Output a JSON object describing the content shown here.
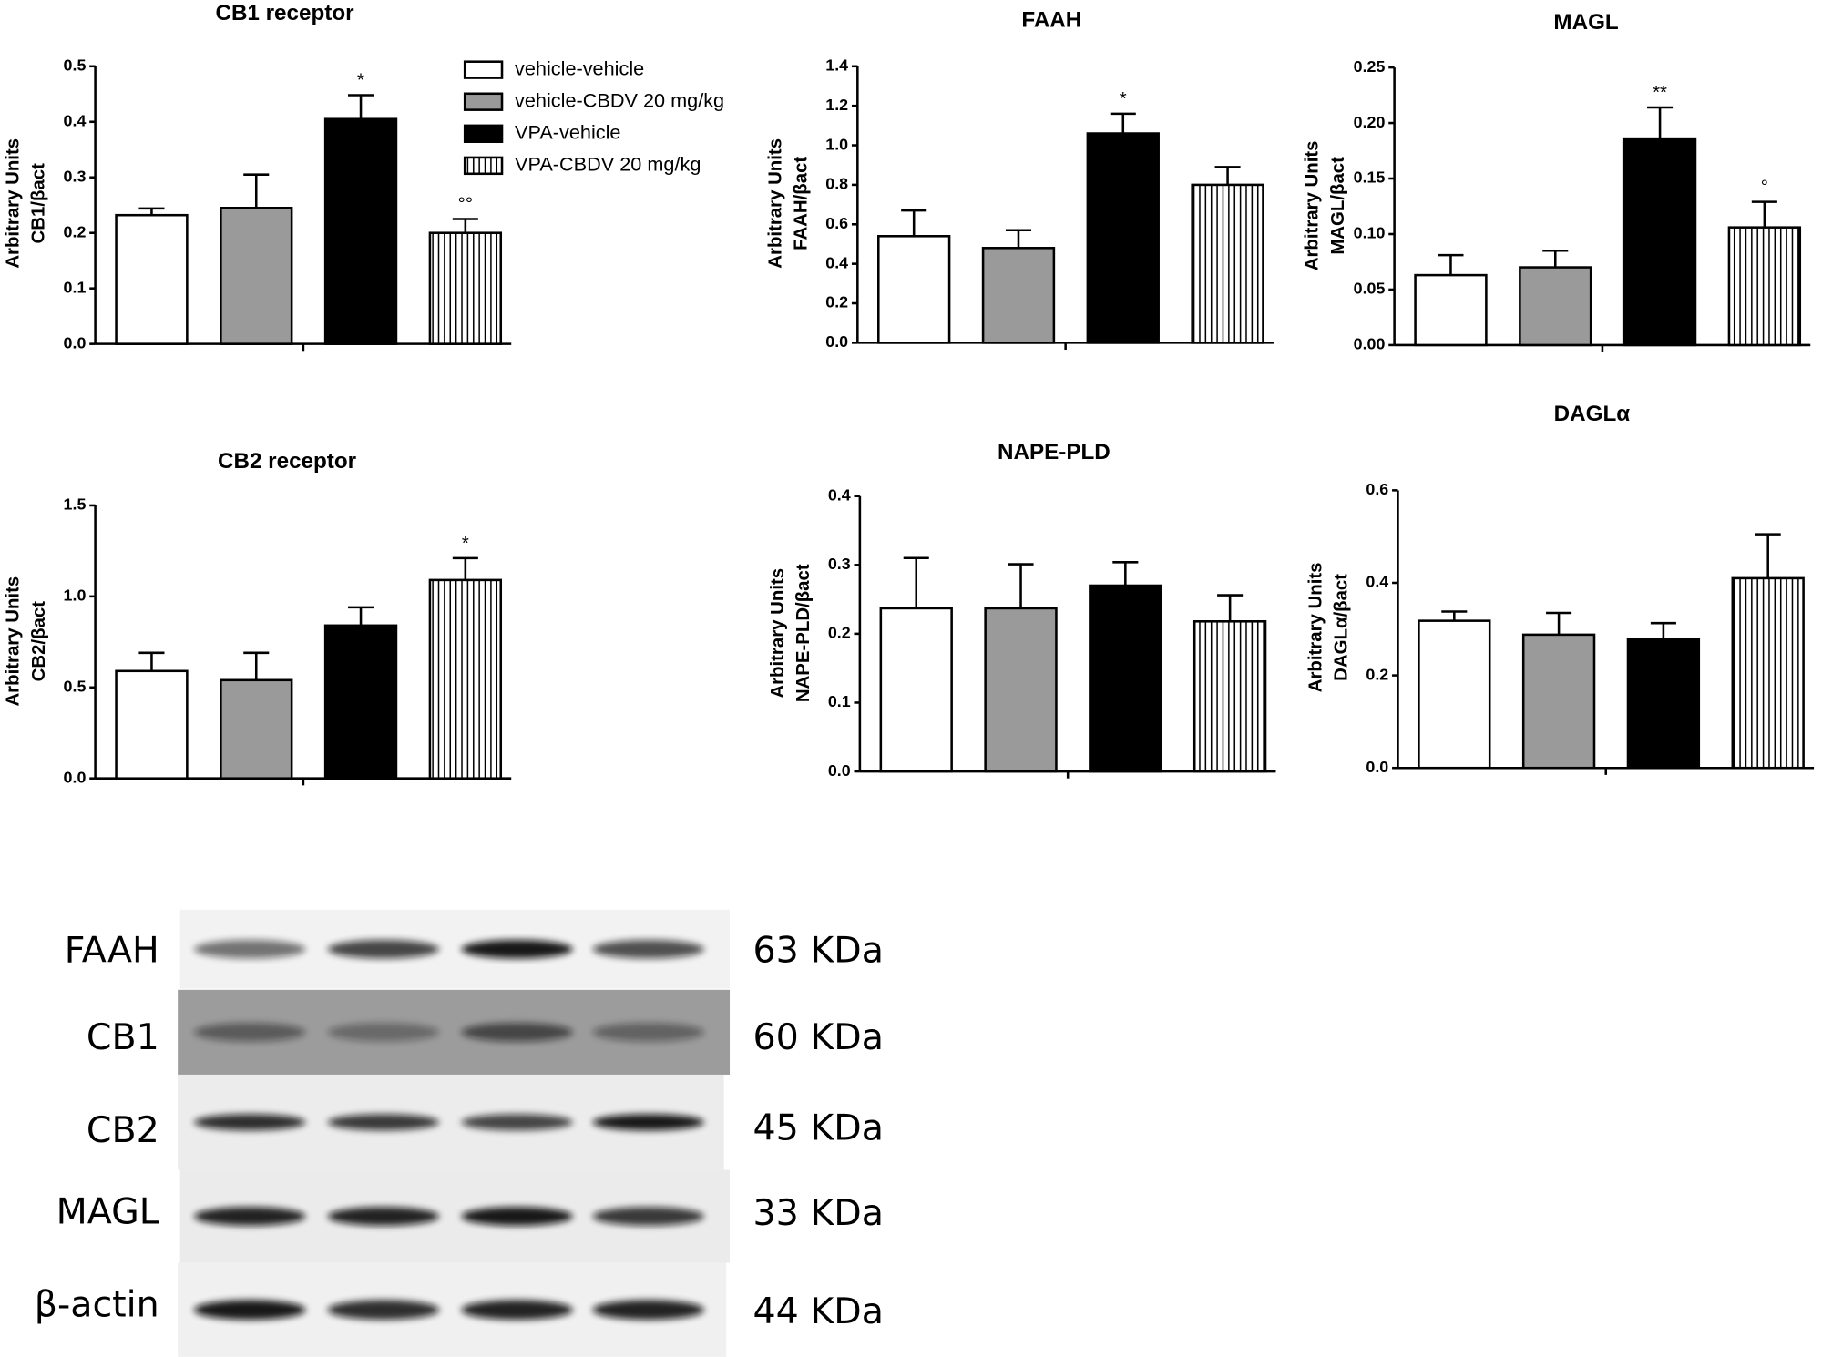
{
  "chart_data": [
    {
      "type": "bar",
      "title": "CB1 receptor",
      "ylabel": [
        "Arbitrary Units",
        "CB1/βact"
      ],
      "values": [
        0.232,
        0.245,
        0.405,
        0.2
      ],
      "errors": [
        0.012,
        0.06,
        0.043,
        0.025
      ],
      "significance": [
        null,
        null,
        "*",
        "°°"
      ],
      "ylim": [
        0,
        0.5
      ],
      "yticks": [
        {
          "value": 0,
          "label": "0.0"
        },
        0.1,
        0.2,
        0.3,
        0.4,
        0.5
      ]
    },
    {
      "type": "bar",
      "title": "FAAH",
      "ylabel": [
        "Arbitrary Units",
        "FAAH/βact"
      ],
      "values": [
        0.54,
        0.48,
        1.06,
        0.8
      ],
      "errors": [
        0.13,
        0.09,
        0.1,
        0.09
      ],
      "significance": [
        null,
        null,
        "*",
        null
      ],
      "ylim": [
        0,
        1.4
      ],
      "yticks": [
        {
          "value": 0,
          "label": "0.0"
        },
        0.2,
        0.4,
        0.6,
        0.8,
        {
          "value": 1,
          "label": "1.0"
        },
        1.2,
        1.4
      ]
    },
    {
      "type": "bar",
      "title": "MAGL",
      "ylabel": [
        "Arbitrary Units",
        "MAGL/βact"
      ],
      "values": [
        0.063,
        0.07,
        0.186,
        0.106
      ],
      "errors": [
        0.018,
        0.015,
        0.028,
        0.023
      ],
      "significance": [
        null,
        null,
        "**",
        "°"
      ],
      "ylim": [
        0,
        0.25
      ],
      "yticks": [
        {
          "value": 0,
          "label": "0.00"
        },
        0.05,
        {
          "value": 0.1,
          "label": "0.10"
        },
        0.15,
        {
          "value": 0.2,
          "label": "0.20"
        },
        0.25
      ]
    },
    {
      "type": "bar",
      "title": "CB2 receptor",
      "ylabel": [
        "Arbitrary Units",
        "CB2/βact"
      ],
      "values": [
        0.59,
        0.54,
        0.84,
        1.09
      ],
      "errors": [
        0.1,
        0.15,
        0.1,
        0.12
      ],
      "significance": [
        null,
        null,
        null,
        "*"
      ],
      "ylim": [
        0,
        1.5
      ],
      "yticks": [
        {
          "value": 0,
          "label": "0.0"
        },
        0.5,
        {
          "value": 1,
          "label": "1.0"
        },
        1.5
      ]
    },
    {
      "type": "bar",
      "title": "NAPE-PLD",
      "ylabel": [
        "Arbitrary Units",
        "NAPE-PLD/βact"
      ],
      "values": [
        0.237,
        0.237,
        0.27,
        0.218
      ],
      "errors": [
        0.073,
        0.064,
        0.034,
        0.038
      ],
      "significance": [
        null,
        null,
        null,
        null
      ],
      "ylim": [
        0,
        0.4
      ],
      "yticks": [
        {
          "value": 0,
          "label": "0.0"
        },
        0.1,
        0.2,
        0.3,
        0.4
      ]
    },
    {
      "type": "bar",
      "title": "DAGLα",
      "ylabel": [
        "Arbitrary Units",
        "DAGLα/βact"
      ],
      "values": [
        0.318,
        0.288,
        0.278,
        0.41
      ],
      "errors": [
        0.02,
        0.047,
        0.035,
        0.095
      ],
      "significance": [
        null,
        null,
        null,
        null
      ],
      "ylim": [
        0,
        0.6
      ],
      "yticks": [
        {
          "value": 0,
          "label": "0.0"
        },
        0.2,
        0.4,
        0.6
      ]
    }
  ],
  "legend": {
    "entries": [
      {
        "name": "vehicle-vehicle",
        "fill": "#ffffff"
      },
      {
        "name": "vehicle-CBDV 20 mg/kg",
        "fill": "#9a9a9a"
      },
      {
        "name": "VPA-vehicle",
        "fill": "#000000"
      },
      {
        "name": "VPA-CBDV 20 mg/kg",
        "fill": "stripes"
      }
    ]
  },
  "blot": {
    "rows": [
      {
        "protein": "FAAH",
        "size": "63 KDa"
      },
      {
        "protein": "CB1",
        "size": "60 KDa"
      },
      {
        "protein": "CB2",
        "size": "45 KDa"
      },
      {
        "protein": "MAGL",
        "size": "33 KDa"
      },
      {
        "protein": "β-actin",
        "size": "44 KDa"
      }
    ]
  }
}
